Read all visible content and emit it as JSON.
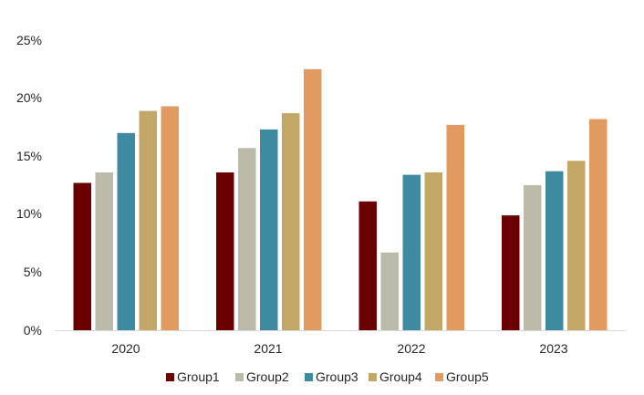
{
  "chart_data": {
    "type": "bar",
    "title": "",
    "xlabel": "",
    "ylabel": "",
    "categories": [
      "2020",
      "2021",
      "2022",
      "2023"
    ],
    "ylim": [
      0,
      25
    ],
    "yticks": [
      0,
      5,
      10,
      15,
      20,
      25
    ],
    "ytick_labels": [
      "0%",
      "5%",
      "10%",
      "15%",
      "20%",
      "25%"
    ],
    "grid": false,
    "legend_position": "bottom",
    "series": [
      {
        "name": "Group1",
        "color": "#6b0000",
        "values": [
          12.7,
          13.6,
          11.1,
          9.9
        ]
      },
      {
        "name": "Group2",
        "color": "#bcbaa9",
        "values": [
          13.6,
          15.7,
          6.7,
          12.5
        ]
      },
      {
        "name": "Group3",
        "color": "#3e8aa0",
        "values": [
          17.0,
          17.3,
          13.4,
          13.7
        ]
      },
      {
        "name": "Group4",
        "color": "#c3a766",
        "values": [
          18.9,
          18.7,
          13.6,
          14.6
        ]
      },
      {
        "name": "Group5",
        "color": "#e19a60",
        "values": [
          19.3,
          22.5,
          17.7,
          18.2
        ]
      }
    ]
  }
}
